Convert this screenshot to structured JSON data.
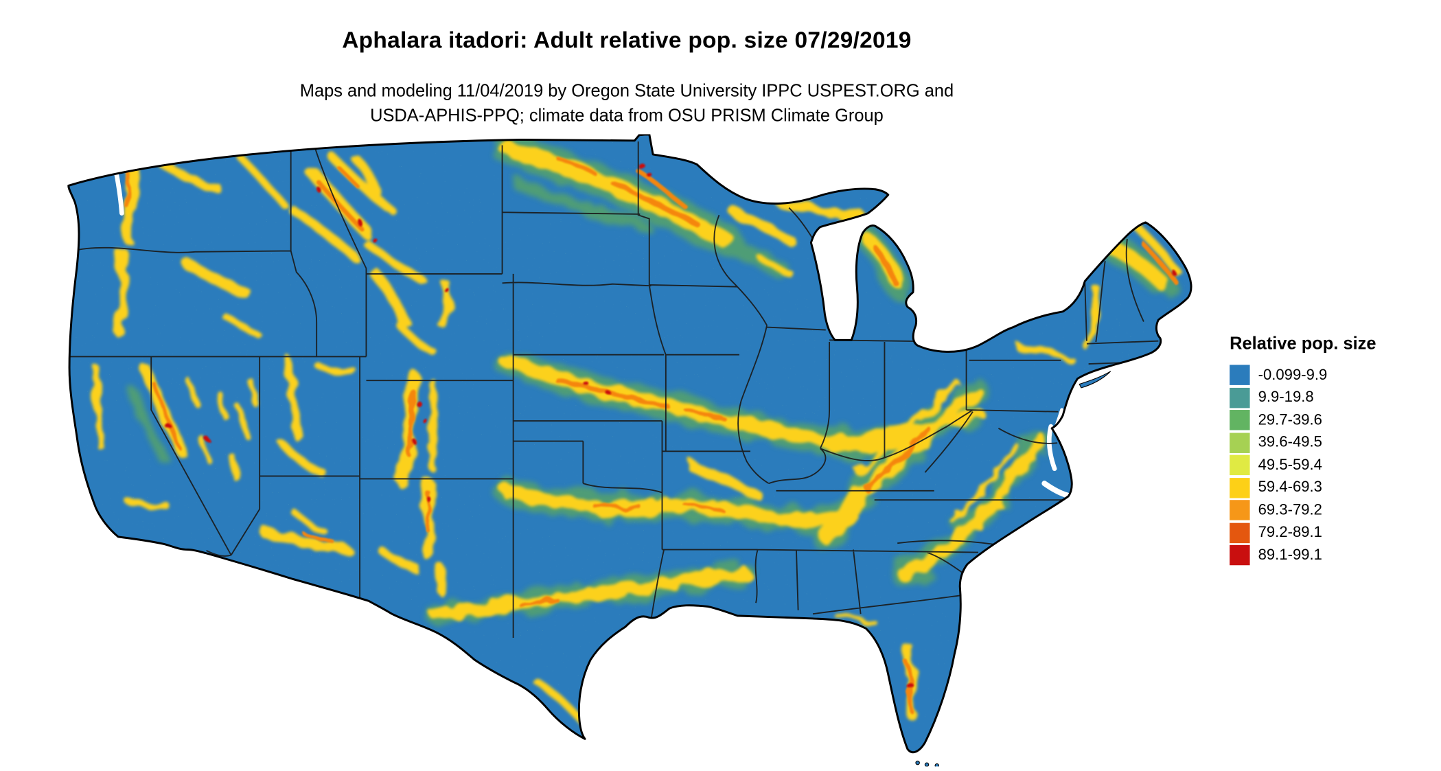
{
  "header": {
    "title": "Aphalara itadori: Adult relative pop. size 07/29/2019",
    "subtitle_line1": "Maps and modeling 11/04/2019 by Oregon State University IPPC USPEST.ORG and",
    "subtitle_line2": "USDA-APHIS-PPQ; climate data from OSU PRISM Climate Group"
  },
  "legend": {
    "title": "Relative pop. size",
    "items": [
      {
        "label": "-0.099-9.9",
        "color": "#2b7cbc"
      },
      {
        "label": "9.9-19.8",
        "color": "#4a9b96"
      },
      {
        "label": "29.7-39.6",
        "color": "#62b462"
      },
      {
        "label": "39.6-49.5",
        "color": "#a6d153"
      },
      {
        "label": "49.5-59.4",
        "color": "#e0ea43"
      },
      {
        "label": "59.4-69.3",
        "color": "#fdd017"
      },
      {
        "label": "69.3-79.2",
        "color": "#f69718"
      },
      {
        "label": "79.2-89.1",
        "color": "#e4570f"
      },
      {
        "label": "89.1-99.1",
        "color": "#c90f0f"
      }
    ]
  },
  "map": {
    "colors": {
      "base_fill": "#2b7cbc",
      "halo_green": "#58a565",
      "band_yellow": "#fcd11a",
      "band_orange": "#f5860d",
      "spot_red": "#c90f0f",
      "state_border": "#1a1a1a",
      "outline": "#000000",
      "water": "#ffffff"
    }
  }
}
